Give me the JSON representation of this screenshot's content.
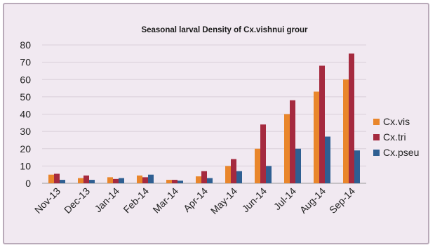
{
  "chart_data": {
    "type": "bar",
    "title": "Seasonal larval Density of Cx.vishnui grour",
    "xlabel": "",
    "ylabel": "",
    "categories": [
      "Nov-13",
      "Dec-13",
      "Jan-14",
      "Feb-14",
      "Mar-14",
      "Apr-14",
      "May-14",
      "Jun-14",
      "Jul-14",
      "Aug-14",
      "Sep-14"
    ],
    "series": [
      {
        "name": "Cx.vis",
        "color": "#e9862b",
        "values": [
          5,
          3,
          3.5,
          4.5,
          2,
          4,
          10,
          20,
          40,
          53,
          60
        ]
      },
      {
        "name": "Cx.tri",
        "color": "#a52a3f",
        "values": [
          5.5,
          4.5,
          2.5,
          3.5,
          2,
          7,
          14,
          34,
          48,
          68,
          75
        ]
      },
      {
        "name": "Cx.pseu",
        "color": "#2f5f92",
        "values": [
          2,
          2,
          3,
          5,
          1.5,
          3,
          7,
          10,
          20,
          27,
          19
        ]
      }
    ],
    "ylim": [
      0,
      80
    ],
    "yticks": [
      0,
      10,
      20,
      30,
      40,
      50,
      60,
      70,
      80
    ],
    "grid": true,
    "legend_position": "right"
  }
}
